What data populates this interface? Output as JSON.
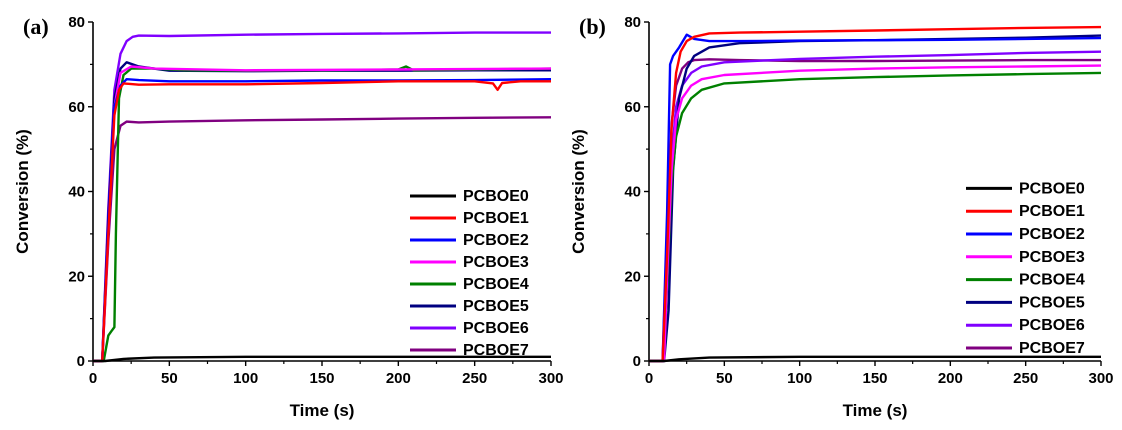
{
  "chart_data": [
    {
      "type": "line",
      "panel_label": "(a)",
      "xlabel": "Time (s)",
      "ylabel": "Conversion (%)",
      "xlim": [
        0,
        300
      ],
      "ylim": [
        0,
        80
      ],
      "xticks": [
        0,
        50,
        100,
        150,
        200,
        250,
        300
      ],
      "yticks": [
        0,
        20,
        40,
        60,
        80
      ],
      "grid": false,
      "legend_position": "right",
      "series": [
        {
          "name": "PCBOE0",
          "color": "#000000",
          "x": [
            0,
            8,
            20,
            40,
            100,
            200,
            300
          ],
          "y": [
            0,
            0,
            0.5,
            0.8,
            1.0,
            1.0,
            1.0
          ]
        },
        {
          "name": "PCBOE1",
          "color": "#ff0000",
          "x": [
            0,
            6,
            10,
            14,
            17,
            20,
            30,
            50,
            100,
            150,
            200,
            250,
            262,
            265,
            268,
            280,
            300
          ],
          "y": [
            0,
            0,
            30,
            58,
            64,
            65.5,
            65.2,
            65.3,
            65.3,
            65.6,
            66,
            66,
            65.5,
            64,
            65.6,
            66,
            66
          ]
        },
        {
          "name": "PCBOE2",
          "color": "#0000ff",
          "x": [
            0,
            6,
            10,
            14,
            18,
            22,
            30,
            50,
            100,
            150,
            200,
            250,
            300
          ],
          "y": [
            0,
            0,
            32,
            60,
            65,
            66.5,
            66.3,
            66,
            66,
            66.2,
            66.2,
            66.3,
            66.5
          ]
        },
        {
          "name": "PCBOE3",
          "color": "#ff00ff",
          "x": [
            0,
            6,
            10,
            14,
            18,
            25,
            40,
            100,
            200,
            300
          ],
          "y": [
            0,
            0,
            30,
            60,
            68,
            69.5,
            69,
            68.6,
            68.8,
            69
          ]
        },
        {
          "name": "PCBOE4",
          "color": "#008000",
          "x": [
            0,
            7,
            10,
            12,
            14,
            15,
            17,
            20,
            25,
            40,
            60,
            100,
            150,
            200,
            205,
            210,
            250,
            300
          ],
          "y": [
            0,
            0,
            6,
            7,
            8,
            30,
            62,
            67.5,
            69,
            69,
            68.6,
            68.5,
            68.6,
            68.8,
            69.5,
            68.6,
            68.8,
            69
          ]
        },
        {
          "name": "PCBOE5",
          "color": "#000080",
          "x": [
            0,
            6,
            10,
            14,
            18,
            22,
            30,
            50,
            100,
            150,
            200,
            250,
            300
          ],
          "y": [
            0,
            0,
            34,
            62,
            69,
            70.5,
            69.5,
            68.5,
            68.4,
            68.5,
            68.5,
            68.6,
            68.6
          ]
        },
        {
          "name": "PCBOE6",
          "color": "#8000ff",
          "x": [
            0,
            6,
            10,
            14,
            18,
            22,
            26,
            30,
            50,
            100,
            150,
            200,
            250,
            300
          ],
          "y": [
            0,
            0,
            36,
            64,
            72.5,
            75.5,
            76.5,
            76.8,
            76.7,
            77,
            77.2,
            77.3,
            77.5,
            77.5
          ]
        },
        {
          "name": "PCBOE7",
          "color": "#800080",
          "x": [
            0,
            6,
            10,
            14,
            18,
            22,
            30,
            50,
            100,
            150,
            200,
            250,
            300
          ],
          "y": [
            0,
            0,
            28,
            50,
            55.5,
            56.5,
            56.3,
            56.5,
            56.8,
            57,
            57.2,
            57.4,
            57.5
          ]
        }
      ]
    },
    {
      "type": "line",
      "panel_label": "(b)",
      "xlabel": "Time (s)",
      "ylabel": "Conversion (%)",
      "xlim": [
        0,
        300
      ],
      "ylim": [
        0,
        80
      ],
      "xticks": [
        0,
        50,
        100,
        150,
        200,
        250,
        300
      ],
      "yticks": [
        0,
        20,
        40,
        60,
        80
      ],
      "grid": false,
      "legend_position": "right",
      "series": [
        {
          "name": "PCBOE0",
          "color": "#000000",
          "x": [
            0,
            10,
            20,
            40,
            100,
            200,
            300
          ],
          "y": [
            0,
            0,
            0.4,
            0.8,
            1.0,
            1.0,
            1.0
          ]
        },
        {
          "name": "PCBOE1",
          "color": "#ff0000",
          "x": [
            0,
            9,
            12,
            15,
            18,
            21,
            25,
            30,
            40,
            60,
            100,
            150,
            200,
            250,
            300
          ],
          "y": [
            0,
            0,
            25,
            55,
            68,
            73,
            75.5,
            76.5,
            77.3,
            77.5,
            77.7,
            78,
            78.3,
            78.6,
            78.8
          ]
        },
        {
          "name": "PCBOE2",
          "color": "#0000ff",
          "x": [
            0,
            9,
            12,
            14,
            16,
            18,
            20,
            25,
            30,
            40,
            60,
            100,
            150,
            200,
            250,
            300
          ],
          "y": [
            0,
            0,
            35,
            70,
            72,
            73,
            74,
            77,
            76,
            75.5,
            75.5,
            75.6,
            75.7,
            75.8,
            76,
            76.2
          ]
        },
        {
          "name": "PCBOE3",
          "color": "#ff00ff",
          "x": [
            0,
            10,
            12,
            15,
            18,
            22,
            28,
            35,
            50,
            100,
            150,
            200,
            250,
            300
          ],
          "y": [
            0,
            0,
            20,
            45,
            57,
            62,
            65,
            66.5,
            67.5,
            68.5,
            69,
            69.3,
            69.5,
            69.7
          ]
        },
        {
          "name": "PCBOE4",
          "color": "#008000",
          "x": [
            0,
            10,
            12,
            15,
            18,
            22,
            28,
            35,
            50,
            100,
            150,
            200,
            250,
            300
          ],
          "y": [
            0,
            0,
            18,
            42,
            53,
            58.5,
            62,
            64,
            65.5,
            66.5,
            67,
            67.4,
            67.7,
            68
          ]
        },
        {
          "name": "PCBOE5",
          "color": "#000080",
          "x": [
            0,
            10,
            13,
            16,
            20,
            25,
            30,
            40,
            60,
            100,
            150,
            200,
            250,
            300
          ],
          "y": [
            0,
            0,
            12,
            45,
            62,
            69,
            72,
            74,
            75,
            75.5,
            75.7,
            76,
            76.3,
            76.8
          ]
        },
        {
          "name": "PCBOE6",
          "color": "#8000ff",
          "x": [
            0,
            10,
            12,
            15,
            18,
            22,
            28,
            35,
            50,
            100,
            150,
            200,
            250,
            300
          ],
          "y": [
            0,
            0,
            22,
            48,
            60,
            65,
            68,
            69.5,
            70.5,
            71.3,
            71.8,
            72.2,
            72.7,
            73
          ]
        },
        {
          "name": "PCBOE7",
          "color": "#800080",
          "x": [
            0,
            9,
            12,
            15,
            18,
            22,
            26,
            30,
            40,
            60,
            100,
            150,
            200,
            250,
            300
          ],
          "y": [
            0,
            0,
            30,
            56,
            65,
            69,
            70.5,
            71,
            71.2,
            71,
            70.8,
            70.8,
            70.9,
            71,
            71
          ]
        }
      ]
    }
  ]
}
